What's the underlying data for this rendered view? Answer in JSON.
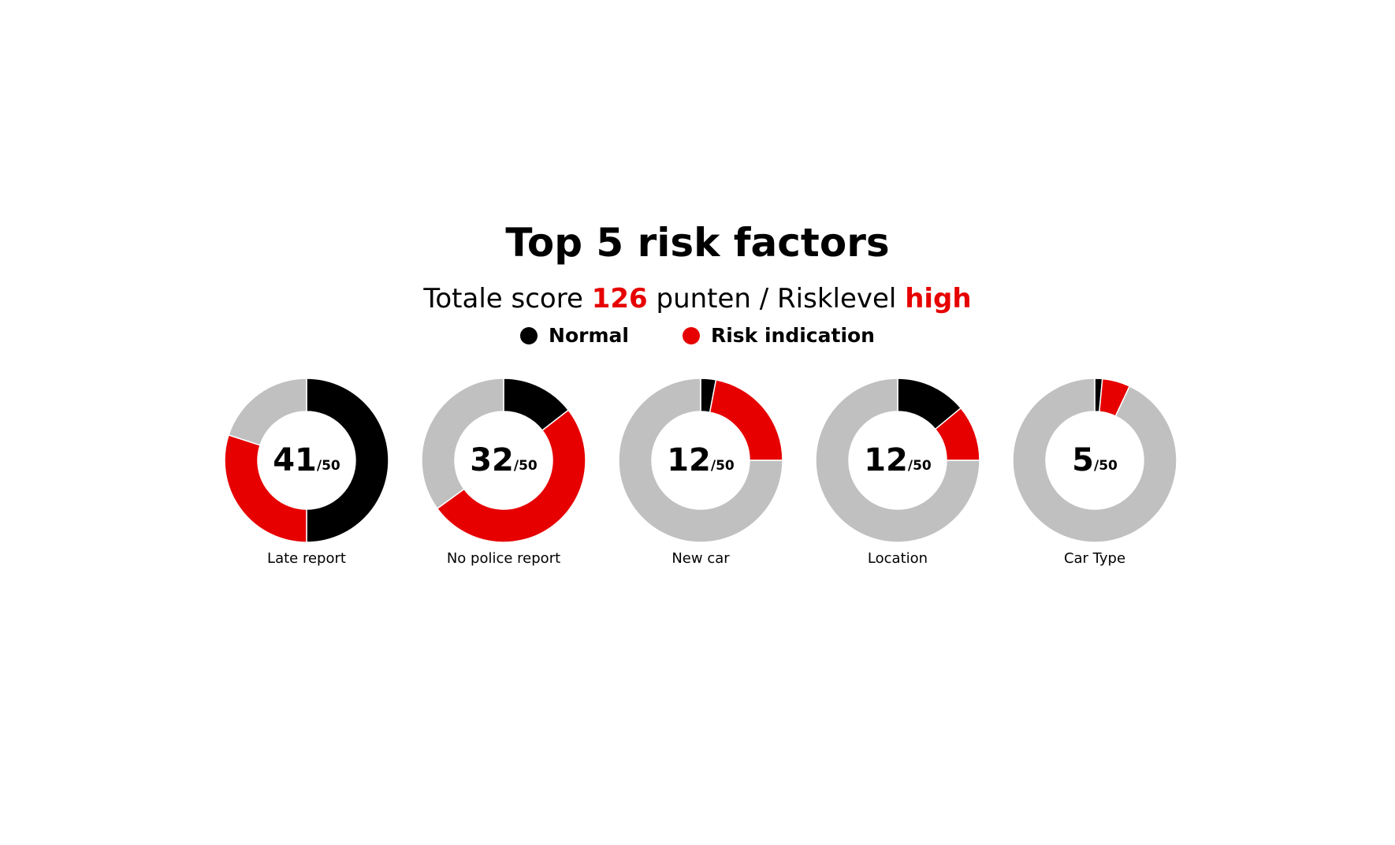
{
  "title": "Top 5 risk factors",
  "subtitle": {
    "prefix": "Totale score",
    "score": "126",
    "middle": "punten / Risklevel",
    "level": "high"
  },
  "legend": [
    {
      "label": "Normal",
      "color": "#000000"
    },
    {
      "label": "Risk indication",
      "color": "#e60000"
    }
  ],
  "colors": {
    "normal": "#000000",
    "risk": "#e60000",
    "remainder": "#c0c0c0",
    "accent": "#e60000"
  },
  "chart_data": {
    "type": "pie",
    "max_label": "/50",
    "charts": [
      {
        "label": "Late report",
        "score": "41",
        "normal": 50,
        "risk": 30,
        "remainder": 20
      },
      {
        "label": "No police report",
        "score": "32",
        "normal": 14.5,
        "risk": 50.5,
        "remainder": 35
      },
      {
        "label": "New car",
        "score": "12",
        "normal": 3,
        "risk": 22,
        "remainder": 75
      },
      {
        "label": "Location",
        "score": "12",
        "normal": 14,
        "risk": 11,
        "remainder": 75
      },
      {
        "label": "Car Type",
        "score": "5",
        "normal": 1.5,
        "risk": 5.5,
        "remainder": 93
      }
    ]
  }
}
